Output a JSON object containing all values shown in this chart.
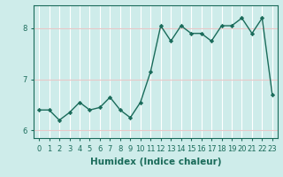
{
  "x": [
    0,
    1,
    2,
    3,
    4,
    5,
    6,
    7,
    8,
    9,
    10,
    11,
    12,
    13,
    14,
    15,
    16,
    17,
    18,
    19,
    20,
    21,
    22,
    23
  ],
  "y": [
    6.4,
    6.4,
    6.2,
    6.35,
    6.55,
    6.4,
    6.45,
    6.65,
    6.4,
    6.25,
    6.55,
    7.15,
    8.05,
    7.75,
    8.05,
    7.9,
    7.9,
    7.75,
    8.05,
    8.05,
    8.2,
    7.9,
    8.2,
    6.7
  ],
  "line_color": "#1a6b5a",
  "marker": "D",
  "marker_size": 2.2,
  "background_color": "#ceecea",
  "grid_color": "#e8c8c8",
  "xlabel": "Humidex (Indice chaleur)",
  "ylabel": "",
  "title": "",
  "xlim": [
    -0.5,
    23.5
  ],
  "ylim": [
    5.85,
    8.45
  ],
  "yticks": [
    6,
    7,
    8
  ],
  "xticks": [
    0,
    1,
    2,
    3,
    4,
    5,
    6,
    7,
    8,
    9,
    10,
    11,
    12,
    13,
    14,
    15,
    16,
    17,
    18,
    19,
    20,
    21,
    22,
    23
  ],
  "tick_fontsize": 6,
  "xlabel_fontsize": 7.5,
  "label_color": "#1a6b5a",
  "grid_linewidth": 0.8,
  "line_width": 1.0
}
